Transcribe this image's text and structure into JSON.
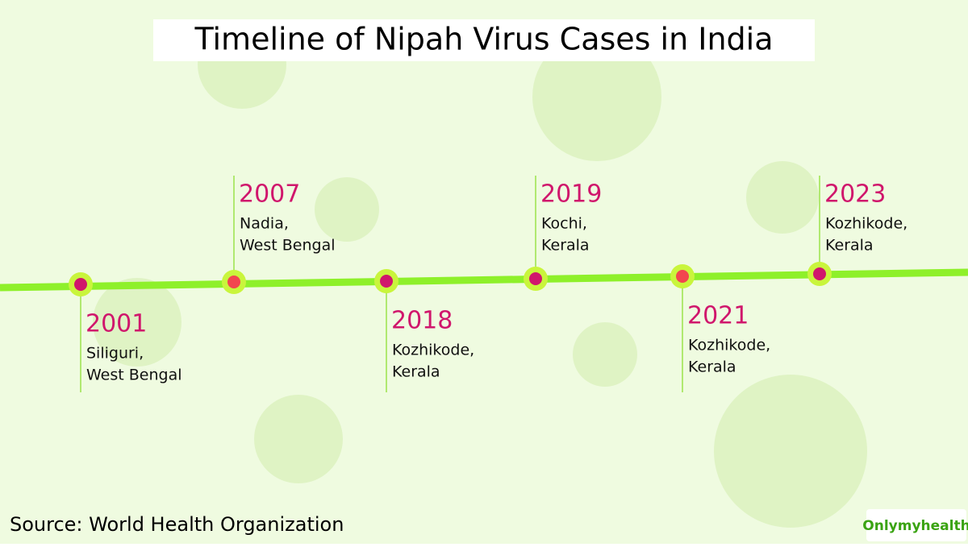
{
  "title": "Timeline of Nipah Virus Cases in India",
  "events": [
    {
      "year": "2001",
      "place": [
        "Siliguri,",
        "West Bengal"
      ]
    },
    {
      "year": "2007",
      "place": [
        "Nadia,",
        "West Bengal"
      ]
    },
    {
      "year": "2018",
      "place": [
        "Kozhikode,",
        "Kerala"
      ]
    },
    {
      "year": "2019",
      "place": [
        "Kochi,",
        "Kerala"
      ]
    },
    {
      "year": "2021",
      "place": [
        "Kozhikode,",
        "Kerala"
      ]
    },
    {
      "year": "2023",
      "place": [
        "Kozhikode,",
        "Kerala"
      ]
    }
  ],
  "source": "Source: World Health Organization",
  "brand": "Onlymyhealth"
}
